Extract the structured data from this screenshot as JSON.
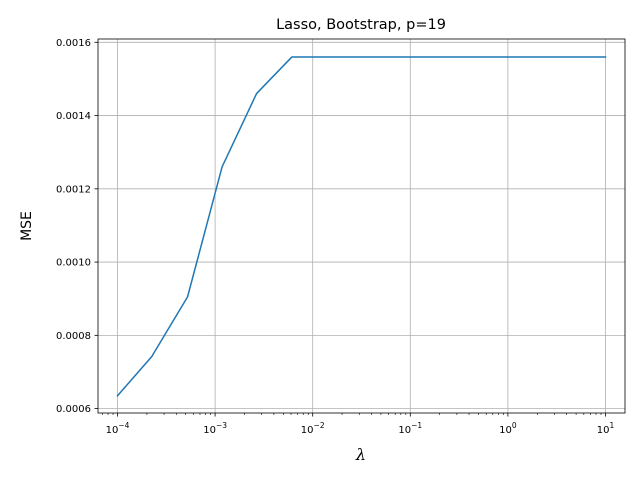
{
  "chart_data": {
    "type": "line",
    "title": "Lasso, Bootstrap, p=19",
    "xlabel": "λ",
    "ylabel": "MSE",
    "xscale": "log",
    "grid": true,
    "xlim": [
      6.31e-05,
      15.85
    ],
    "ylim": [
      0.000588,
      0.001609
    ],
    "x_ticks": [
      {
        "value": 0.0001,
        "base": "10",
        "exp": "−4"
      },
      {
        "value": 0.001,
        "base": "10",
        "exp": "−3"
      },
      {
        "value": 0.01,
        "base": "10",
        "exp": "−2"
      },
      {
        "value": 0.1,
        "base": "10",
        "exp": "−1"
      },
      {
        "value": 1,
        "base": "10",
        "exp": "0"
      },
      {
        "value": 10,
        "base": "10",
        "exp": "1"
      }
    ],
    "y_ticks": [
      {
        "value": 0.0006,
        "label": "0.0006"
      },
      {
        "value": 0.0008,
        "label": "0.0008"
      },
      {
        "value": 0.001,
        "label": "0.0010"
      },
      {
        "value": 0.0012,
        "label": "0.0012"
      },
      {
        "value": 0.0014,
        "label": "0.0014"
      },
      {
        "value": 0.0016,
        "label": "0.0016"
      }
    ],
    "series": [
      {
        "color": "#1f77b4",
        "x": [
          0.0001,
          0.000224,
          0.000522,
          0.00118,
          0.00266,
          0.00612,
          0.014,
          0.031,
          0.07,
          0.16,
          0.36,
          0.82,
          1.85,
          4.2,
          10
        ],
        "y": [
          0.000635,
          0.000742,
          0.000905,
          0.00126,
          0.00146,
          0.00156,
          0.00156,
          0.00156,
          0.00156,
          0.00156,
          0.00156,
          0.00156,
          0.00156,
          0.00156,
          0.00156
        ]
      }
    ]
  }
}
